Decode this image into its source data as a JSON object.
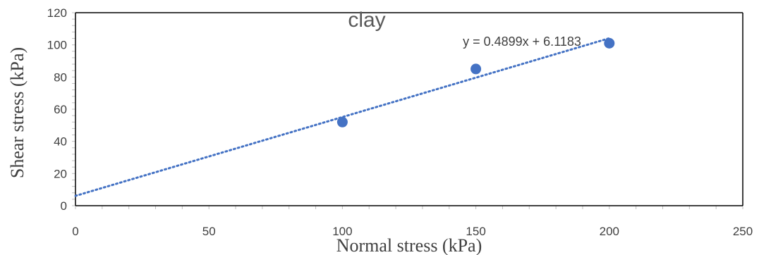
{
  "chart_data": {
    "type": "scatter",
    "title": "clay",
    "xlabel": "Normal stress (kPa)",
    "ylabel": "Shear stress (kPa)",
    "xlim": [
      0,
      250
    ],
    "ylim": [
      0,
      120
    ],
    "x_ticks": [
      0,
      50,
      100,
      150,
      200,
      250
    ],
    "y_ticks": [
      0,
      20,
      40,
      60,
      80,
      100,
      120
    ],
    "x_tick_labels": [
      "0",
      "50",
      "100",
      "150",
      "200",
      "250"
    ],
    "y_tick_labels": [
      "0",
      "20",
      "40",
      "60",
      "80",
      "100",
      "120"
    ],
    "grid": false,
    "legend": "none",
    "series": [
      {
        "x": [
          100,
          150,
          200
        ],
        "y": [
          52,
          85,
          101
        ],
        "color": "#4472C4"
      }
    ],
    "trendline": {
      "type": "linear",
      "slope": 0.4899,
      "intercept": 6.1183,
      "equation": "y = 0.4899x + 6.1183",
      "style": "dotted",
      "color": "#4472C4",
      "x_range": [
        0,
        200
      ]
    }
  }
}
